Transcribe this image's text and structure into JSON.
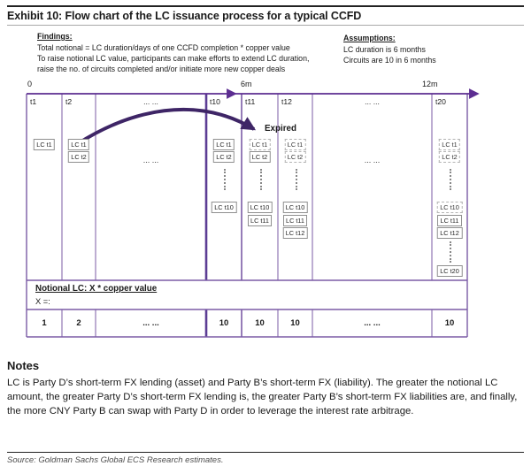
{
  "title": "Exhibit 10: Flow chart of the LC issuance process for a typical CCFD",
  "findings": {
    "heading": "Findings:",
    "lines": [
      "Total notional = LC duration/days of one CCFD completion * copper value",
      "To raise  notional LC value, participants can make efforts to extend LC duration,",
      "raise the no. of circuits completed and/or initiate more new copper deals"
    ]
  },
  "assumptions": {
    "heading": "Assumptions:",
    "lines": [
      "LC duration is 6 months",
      "Circuits are 10 in 6 months"
    ]
  },
  "diagram": {
    "time_markers": [
      "0",
      "6m",
      "12m"
    ],
    "expired_label": "Expired",
    "columns": [
      {
        "header": "t1",
        "wide": false,
        "items": [
          {
            "slot": "r1",
            "label": "LC t1",
            "expired": false
          }
        ]
      },
      {
        "header": "t2",
        "wide": false,
        "items": [
          {
            "slot": "r1",
            "label": "LC t1",
            "expired": false
          },
          {
            "slot": "r2",
            "label": "LC t2",
            "expired": false
          }
        ]
      },
      {
        "header": "... ...",
        "wide": true,
        "items": [
          {
            "slot": "mid",
            "type": "ellipsis",
            "label": "... ..."
          }
        ]
      },
      {
        "header": "t10",
        "wide": false,
        "items": [
          {
            "slot": "r1",
            "label": "LC t1",
            "expired": false
          },
          {
            "slot": "r2",
            "label": "LC t2",
            "expired": false
          },
          {
            "slot": "dots1",
            "type": "dots"
          },
          {
            "slot": "r10",
            "label": "LC t10",
            "expired": false
          }
        ]
      },
      {
        "header": "t11",
        "wide": false,
        "items": [
          {
            "slot": "r1",
            "label": "LC t1",
            "expired": true
          },
          {
            "slot": "r2",
            "label": "LC t2",
            "expired": false
          },
          {
            "slot": "dots1",
            "type": "dots"
          },
          {
            "slot": "r10",
            "label": "LC t10",
            "expired": false
          },
          {
            "slot": "r11",
            "label": "LC t11",
            "expired": false
          }
        ]
      },
      {
        "header": "t12",
        "wide": false,
        "items": [
          {
            "slot": "r1",
            "label": "LC t1",
            "expired": true
          },
          {
            "slot": "r2",
            "label": "LC t2",
            "expired": true
          },
          {
            "slot": "dots1",
            "type": "dots"
          },
          {
            "slot": "r10",
            "label": "LC t10",
            "expired": false
          },
          {
            "slot": "r11",
            "label": "LC t11",
            "expired": false
          },
          {
            "slot": "r12",
            "label": "LC t12",
            "expired": false
          }
        ]
      },
      {
        "header": "... ...",
        "wide": true,
        "items": [
          {
            "slot": "mid",
            "type": "ellipsis",
            "label": "... ..."
          }
        ]
      },
      {
        "header": "t20",
        "wide": false,
        "items": [
          {
            "slot": "r1",
            "label": "LC t1",
            "expired": true
          },
          {
            "slot": "r2",
            "label": "LC t2",
            "expired": true
          },
          {
            "slot": "dots1",
            "type": "dots"
          },
          {
            "slot": "r10",
            "label": "LC t10",
            "expired": true
          },
          {
            "slot": "r11",
            "label": "LC t11",
            "expired": false
          },
          {
            "slot": "r12",
            "label": "LC t12",
            "expired": false
          },
          {
            "slot": "dots2",
            "type": "dots"
          },
          {
            "slot": "r20",
            "label": "LC t20",
            "expired": false
          }
        ]
      }
    ],
    "notional": {
      "heading": "Notional LC: X * copper value",
      "sub": "X =:"
    },
    "x_values": [
      "1",
      "2",
      "... ...",
      "10",
      "10",
      "10",
      "... ...",
      "10"
    ]
  },
  "notes": {
    "heading": "Notes",
    "body": "LC is Party D’s short-term FX lending (asset) and Party B’s short-term FX (liability). The greater the notional LC amount, the greater Party D’s short-term FX lending is, the greater Party B’s short-term FX liabilities are, and finally, the more CNY Party B can swap with Party D in order to leverage the interest rate arbitrage."
  },
  "source": "Source: Goldman Sachs Global ECS Research estimates.",
  "colors": {
    "table_line": "#7b5ba6",
    "heavy_line": "#5c3d94",
    "timeline": "#5c2d91",
    "arrow": "#3e2566",
    "box_border": "#8f8f8f",
    "box_border_expired": "#b3b3b3"
  }
}
